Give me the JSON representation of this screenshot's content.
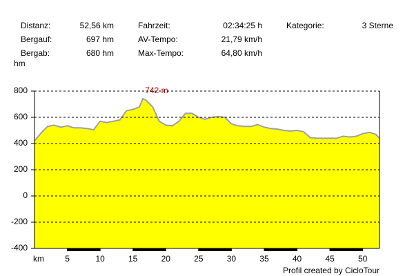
{
  "stats": [
    [
      {
        "label": "Distanz:",
        "value": "52,56 km"
      },
      {
        "label": "Fahrzeit:",
        "value": "02:34:25 h"
      },
      {
        "label": "Kategorie:",
        "value": "3 Sterne"
      }
    ],
    [
      {
        "label": "Bergauf:",
        "value": "697 hm"
      },
      {
        "label": "AV-Tempo:",
        "value": "21,79 km/h"
      }
    ],
    [
      {
        "label": "Bergab:",
        "value": "680 hm"
      },
      {
        "label": "Max-Tempo:",
        "value": "64,80 km/h"
      }
    ]
  ],
  "chart_data": {
    "type": "area",
    "y_label": "hm",
    "x_label": "km",
    "annotation": "742 m",
    "footer": "Profil created by CicloTour",
    "x": [
      0,
      1,
      2,
      3,
      4,
      5,
      6,
      7,
      8,
      9,
      10,
      11,
      12,
      13,
      14,
      15,
      16,
      16.5,
      17,
      18,
      19,
      20,
      21,
      22,
      23,
      24,
      25,
      26,
      27,
      28,
      29,
      30,
      31,
      32,
      33,
      34,
      35,
      36,
      37,
      38,
      39,
      40,
      41,
      42,
      43,
      44,
      45,
      46,
      47,
      48,
      49,
      50,
      51,
      52,
      52.56
    ],
    "series": [
      {
        "color": "#ffff00",
        "values": [
          420,
          480,
          530,
          540,
          525,
          535,
          520,
          520,
          515,
          505,
          570,
          560,
          570,
          580,
          650,
          660,
          680,
          742,
          730,
          680,
          570,
          540,
          535,
          570,
          630,
          630,
          600,
          585,
          600,
          605,
          600,
          550,
          535,
          530,
          530,
          545,
          525,
          515,
          510,
          500,
          495,
          500,
          490,
          445,
          440,
          440,
          440,
          440,
          455,
          450,
          455,
          475,
          485,
          470,
          440
        ]
      }
    ],
    "xlim": [
      0,
      52.56
    ],
    "xticks": [
      5,
      10,
      15,
      20,
      25,
      30,
      35,
      40,
      45,
      50
    ],
    "ylim": [
      -400,
      800
    ],
    "yticks": [
      -400,
      -200,
      0,
      200,
      400,
      600,
      800
    ],
    "grid": true
  }
}
